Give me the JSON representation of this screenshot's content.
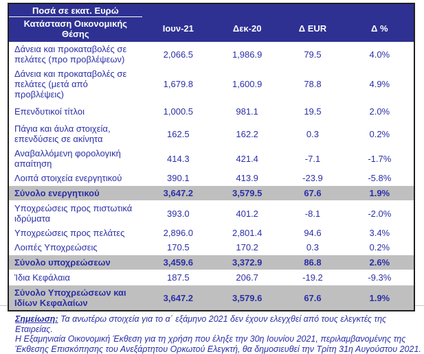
{
  "title": "Ποσά σε εκατ. Ευρώ",
  "table": {
    "header_label": "Κατάσταση  Οικονομικής Θέσης",
    "columns": [
      "Ιουν-21",
      "Δεκ-20",
      "Δ EUR",
      "Δ %"
    ],
    "rows": [
      {
        "type": "data",
        "label": "Δάνεια και προκαταβολές σε πελάτες (προ προβλέψεων)",
        "jun21": "2,066.5",
        "dec20": "1,986.9",
        "d_eur": "79.5",
        "d_pct": "4.0%"
      },
      {
        "type": "data",
        "label": "Δάνεια και προκαταβολές σε πελάτες (μετά από προβλέψεις)",
        "jun21": "1,679.8",
        "dec20": "1,600.9",
        "d_eur": "78.8",
        "d_pct": "4.9%"
      },
      {
        "type": "data",
        "label": "Επενδυτικοί τίτλοι",
        "jun21": "1,000.5",
        "dec20": "981.1",
        "d_eur": "19.5",
        "d_pct": "2.0%",
        "spacious": true
      },
      {
        "type": "data",
        "label": "Πάγια και άυλα στοιχεία, επενδύσεις σε ακίνητα",
        "jun21": "162.5",
        "dec20": "162.2",
        "d_eur": "0.3",
        "d_pct": "0.2%"
      },
      {
        "type": "data",
        "label": "Αναβαλλόμενη φορολογική απαίτηση",
        "jun21": "414.3",
        "dec20": "421.4",
        "d_eur": "-7.1",
        "d_pct": "-1.7%"
      },
      {
        "type": "data",
        "label": "Λοιπά στοιχεία ενεργητικού",
        "jun21": "390.1",
        "dec20": "413.9",
        "d_eur": "-23.9",
        "d_pct": "-5.8%"
      },
      {
        "type": "total",
        "label": "Σύνολο ενεργητικού",
        "jun21": "3,647.2",
        "dec20": "3,579.5",
        "d_eur": "67.6",
        "d_pct": "1.9%"
      },
      {
        "type": "data",
        "label": "Υποχρεώσεις προς πιστωτικά ιδρύματα",
        "jun21": "393.0",
        "dec20": "401.2",
        "d_eur": "-8.1",
        "d_pct": "-2.0%"
      },
      {
        "type": "data",
        "label": "Υποχρεώσεις προς πελάτες",
        "jun21": "2,896.0",
        "dec20": "2,801.4",
        "d_eur": "94.6",
        "d_pct": "3.4%"
      },
      {
        "type": "data",
        "label": "Λοιπές Υποχρεώσεις",
        "jun21": "170.5",
        "dec20": "170.2",
        "d_eur": "0.3",
        "d_pct": "0.2%"
      },
      {
        "type": "total",
        "label": "Σύνολο υποχρεώσεων",
        "jun21": "3,459.6",
        "dec20": "3,372.9",
        "d_eur": "86.8",
        "d_pct": "2.6%"
      },
      {
        "type": "data",
        "label": "Ίδια Κεφάλαια",
        "jun21": "187.5",
        "dec20": "206.7",
        "d_eur": "-19.2",
        "d_pct": "-9.3%"
      },
      {
        "type": "total",
        "label": "Σύνολο Υποχρεώσεων και Ιδίων Κεφαλαίων",
        "jun21": "3,647.2",
        "dec20": "3,579.6",
        "d_eur": "67.6",
        "d_pct": "1.9%"
      }
    ]
  },
  "note": {
    "label": "Σημείωση:",
    "line1": " Τα ανωτέρω στοιχεία για το α΄ εξάμηνο 2021 δεν έχουν ελεγχθεί από τους ελεγκτές της Εταιρείας.",
    "line2": "Η Εξαμηνιαία Οικονομική Έκθεση για τη χρήση που έληξε την 30η Ιουνίου 2021, περιλαμβανομένης της",
    "line3": "Έκθεσης Επισκόπησης του Ανεξάρτητου Ορκωτού Ελεγκτή, θα δημοσιευθεί την Τρίτη 31η Αυγούστου 2021."
  },
  "colors": {
    "header_bg": "#2E3192",
    "header_text": "#FFFFFF",
    "body_text": "#2B2FA6",
    "total_row_bg": "#BFBFBF",
    "table_border": "#1F1F1F"
  }
}
